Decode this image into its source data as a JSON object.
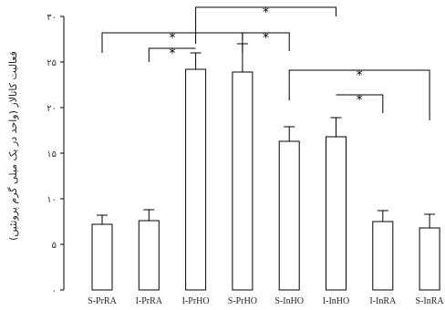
{
  "chart_data": {
    "type": "bar",
    "ylabel": "فعالیت کاتالاز (واحد در یک میلی گرم پروتئین)",
    "ylim": [
      0,
      30
    ],
    "yticks": [
      0,
      5,
      10,
      15,
      20,
      25,
      30
    ],
    "ytick_labels": [
      "۰",
      "۵",
      "۱۰",
      "۱۵",
      "۲۰",
      "۲۵",
      "۳۰"
    ],
    "grid": false,
    "categories": [
      "S-PrRA",
      "I-PrRA",
      "I-PrHO",
      "S-PrHO",
      "S-InHO",
      "I-InHO",
      "I-InRA",
      "S-InRA"
    ],
    "values": [
      7.2,
      7.6,
      24.2,
      23.9,
      16.3,
      16.8,
      7.5,
      6.8
    ],
    "errors": [
      1.0,
      1.2,
      1.8,
      3.1,
      1.6,
      2.1,
      1.2,
      1.5
    ],
    "bar_color": "#ffffff",
    "edge_color": "#000000",
    "comparisons": [
      {
        "from": "S-PrRA",
        "to": "S-PrHO",
        "mark": "*"
      },
      {
        "from": "I-PrRA",
        "to": "I-PrHO",
        "mark": "*"
      },
      {
        "from": "I-PrHO",
        "to": "I-InHO",
        "mark": "*"
      },
      {
        "from": "S-PrHO",
        "to": "S-InHO",
        "mark": "*"
      },
      {
        "from": "S-InHO",
        "to": "S-InRA",
        "mark": "*"
      },
      {
        "from": "I-InHO",
        "to": "I-InRA",
        "mark": "*"
      }
    ]
  }
}
